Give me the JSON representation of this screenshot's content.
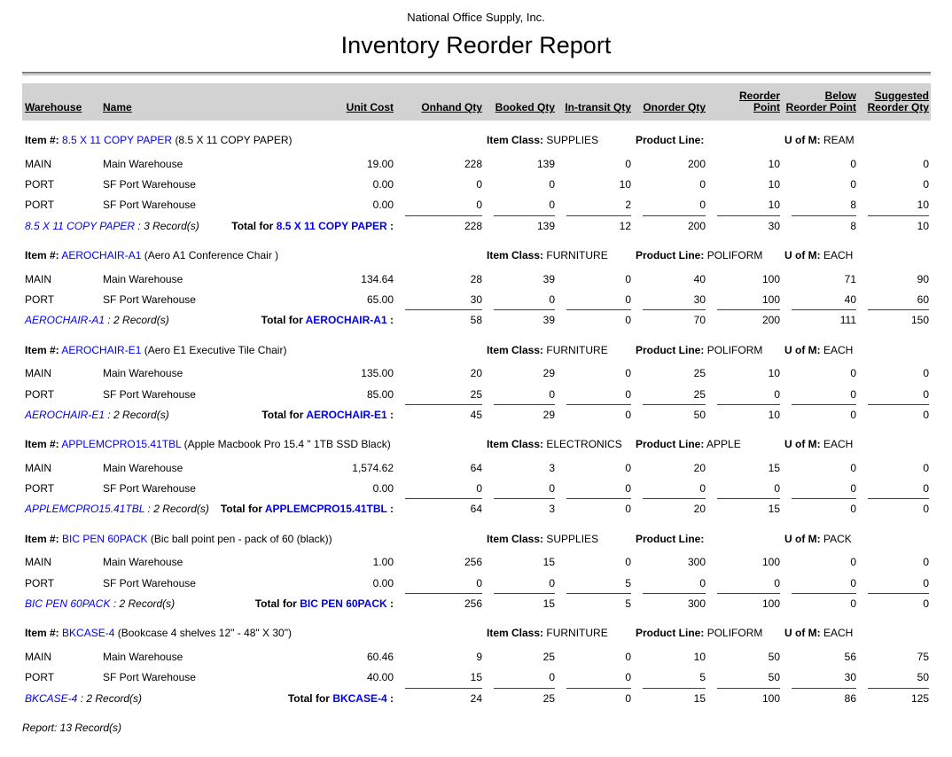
{
  "report": {
    "company_name": "National Office Supply, Inc.",
    "title": "Inventory Reorder Report",
    "footer_text": "Report: 13 Record(s)"
  },
  "labels": {
    "item_number": "Item #:",
    "item_class": "Item Class:",
    "product_line": "Product Line:",
    "unit_of_measure": "U of M:",
    "total_prefix": "Total for",
    "total_suffix": " :"
  },
  "colors": {
    "link_blue": "#0000EE",
    "header_band_gray": "#D2D2D2"
  },
  "columns": [
    "Warehouse",
    "Name",
    "Unit Cost",
    "Onhand Qty",
    "Booked Qty",
    "In-transit Qty",
    "Onorder Qty",
    "Reorder Point",
    "Below\nReorder Point",
    "Suggested\nReorder Qty"
  ],
  "groups": [
    {
      "code": "8.5 X 11 COPY PAPER",
      "description": "(8.5 X 11 COPY PAPER)",
      "item_class": "SUPPLIES",
      "product_line": "",
      "unit_of_measure": "REAM",
      "rows": [
        {
          "warehouse": "MAIN",
          "name": "Main Warehouse",
          "unit_cost": "19.00",
          "onhand": "228",
          "booked": "139",
          "in_transit": "0",
          "onorder": "200",
          "reorder_point": "10",
          "below_reorder": "0",
          "suggested": "0"
        },
        {
          "warehouse": "PORT",
          "name": "SF Port Warehouse",
          "unit_cost": "0.00",
          "onhand": "0",
          "booked": "0",
          "in_transit": "10",
          "onorder": "0",
          "reorder_point": "10",
          "below_reorder": "0",
          "suggested": "0"
        },
        {
          "warehouse": "PORT",
          "name": "SF Port Warehouse",
          "unit_cost": "0.00",
          "onhand": "0",
          "booked": "0",
          "in_transit": "2",
          "onorder": "0",
          "reorder_point": "10",
          "below_reorder": "8",
          "suggested": "10"
        }
      ],
      "records_text": " : 3 Record(s)",
      "totals": {
        "onhand": "228",
        "booked": "139",
        "in_transit": "12",
        "onorder": "200",
        "reorder_point": "30",
        "below_reorder": "8",
        "suggested": "10"
      }
    },
    {
      "code": "AEROCHAIR-A1",
      "description": "(Aero A1 Conference Chair )",
      "item_class": "FURNITURE",
      "product_line": "POLIFORM",
      "unit_of_measure": "EACH",
      "rows": [
        {
          "warehouse": "MAIN",
          "name": "Main Warehouse",
          "unit_cost": "134.64",
          "onhand": "28",
          "booked": "39",
          "in_transit": "0",
          "onorder": "40",
          "reorder_point": "100",
          "below_reorder": "71",
          "suggested": "90"
        },
        {
          "warehouse": "PORT",
          "name": "SF Port Warehouse",
          "unit_cost": "65.00",
          "onhand": "30",
          "booked": "0",
          "in_transit": "0",
          "onorder": "30",
          "reorder_point": "100",
          "below_reorder": "40",
          "suggested": "60"
        }
      ],
      "records_text": " : 2 Record(s)",
      "totals": {
        "onhand": "58",
        "booked": "39",
        "in_transit": "0",
        "onorder": "70",
        "reorder_point": "200",
        "below_reorder": "111",
        "suggested": "150"
      }
    },
    {
      "code": "AEROCHAIR-E1",
      "description": "(Aero E1 Executive Tile Chair)",
      "item_class": "FURNITURE",
      "product_line": "POLIFORM",
      "unit_of_measure": "EACH",
      "rows": [
        {
          "warehouse": "MAIN",
          "name": "Main Warehouse",
          "unit_cost": "135.00",
          "onhand": "20",
          "booked": "29",
          "in_transit": "0",
          "onorder": "25",
          "reorder_point": "10",
          "below_reorder": "0",
          "suggested": "0"
        },
        {
          "warehouse": "PORT",
          "name": "SF Port Warehouse",
          "unit_cost": "85.00",
          "onhand": "25",
          "booked": "0",
          "in_transit": "0",
          "onorder": "25",
          "reorder_point": "0",
          "below_reorder": "0",
          "suggested": "0"
        }
      ],
      "records_text": " : 2 Record(s)",
      "totals": {
        "onhand": "45",
        "booked": "29",
        "in_transit": "0",
        "onorder": "50",
        "reorder_point": "10",
        "below_reorder": "0",
        "suggested": "0"
      }
    },
    {
      "code": "APPLEMCPRO15.41TBL",
      "description": "(Apple Macbook Pro 15.4 \" 1TB SSD Black)",
      "item_class": "ELECTRONICS",
      "product_line": "APPLE",
      "unit_of_measure": "EACH",
      "rows": [
        {
          "warehouse": "MAIN",
          "name": "Main Warehouse",
          "unit_cost": "1,574.62",
          "onhand": "64",
          "booked": "3",
          "in_transit": "0",
          "onorder": "20",
          "reorder_point": "15",
          "below_reorder": "0",
          "suggested": "0"
        },
        {
          "warehouse": "PORT",
          "name": "SF Port Warehouse",
          "unit_cost": "0.00",
          "onhand": "0",
          "booked": "0",
          "in_transit": "0",
          "onorder": "0",
          "reorder_point": "0",
          "below_reorder": "0",
          "suggested": "0"
        }
      ],
      "records_text": " : 2 Record(s)",
      "totals": {
        "onhand": "64",
        "booked": "3",
        "in_transit": "0",
        "onorder": "20",
        "reorder_point": "15",
        "below_reorder": "0",
        "suggested": "0"
      }
    },
    {
      "code": "BIC PEN 60PACK",
      "description": "(Bic ball point pen - pack of 60 (black))",
      "item_class": "SUPPLIES",
      "product_line": "",
      "unit_of_measure": "PACK",
      "rows": [
        {
          "warehouse": "MAIN",
          "name": "Main Warehouse",
          "unit_cost": "1.00",
          "onhand": "256",
          "booked": "15",
          "in_transit": "0",
          "onorder": "300",
          "reorder_point": "100",
          "below_reorder": "0",
          "suggested": "0"
        },
        {
          "warehouse": "PORT",
          "name": "SF Port Warehouse",
          "unit_cost": "0.00",
          "onhand": "0",
          "booked": "0",
          "in_transit": "5",
          "onorder": "0",
          "reorder_point": "0",
          "below_reorder": "0",
          "suggested": "0"
        }
      ],
      "records_text": " : 2 Record(s)",
      "totals": {
        "onhand": "256",
        "booked": "15",
        "in_transit": "5",
        "onorder": "300",
        "reorder_point": "100",
        "below_reorder": "0",
        "suggested": "0"
      }
    },
    {
      "code": "BKCASE-4",
      "description": "(Bookcase 4 shelves 12\" - 48\" X 30\")",
      "item_class": "FURNITURE",
      "product_line": "POLIFORM",
      "unit_of_measure": "EACH",
      "rows": [
        {
          "warehouse": "MAIN",
          "name": "Main Warehouse",
          "unit_cost": "60.46",
          "onhand": "9",
          "booked": "25",
          "in_transit": "0",
          "onorder": "10",
          "reorder_point": "50",
          "below_reorder": "56",
          "suggested": "75"
        },
        {
          "warehouse": "PORT",
          "name": "SF Port Warehouse",
          "unit_cost": "40.00",
          "onhand": "15",
          "booked": "0",
          "in_transit": "0",
          "onorder": "5",
          "reorder_point": "50",
          "below_reorder": "30",
          "suggested": "50"
        }
      ],
      "records_text": " : 2 Record(s)",
      "totals": {
        "onhand": "24",
        "booked": "25",
        "in_transit": "0",
        "onorder": "15",
        "reorder_point": "100",
        "below_reorder": "86",
        "suggested": "125"
      }
    }
  ]
}
